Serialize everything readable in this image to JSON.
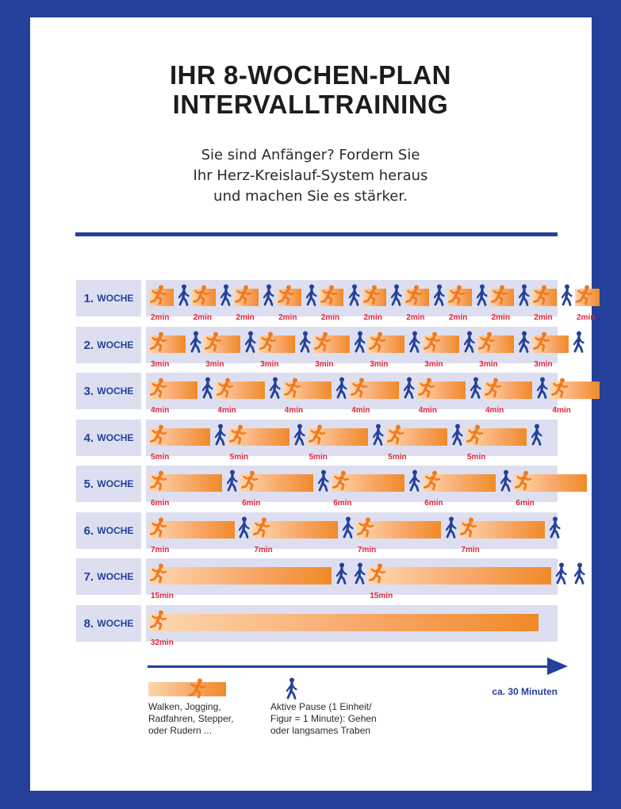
{
  "title": {
    "line1": "IHR 8-WOCHEN-PLAN",
    "line2": "INTERVALLTRAINING"
  },
  "subtitle": {
    "line1": "Sie sind Anfänger? Fordern Sie",
    "line2": "Ihr Herz-Kreislauf-System heraus",
    "line3": "und machen Sie es stärker."
  },
  "weeks": [
    {
      "num": "1.",
      "word": "WOCHE",
      "active_min": 2,
      "active_label": "2min",
      "pause_min": 1,
      "reps": 11
    },
    {
      "num": "2.",
      "word": "WOCHE",
      "active_min": 3,
      "active_label": "3min",
      "pause_min": 1,
      "reps": 8
    },
    {
      "num": "3.",
      "word": "WOCHE",
      "active_min": 4,
      "active_label": "4min",
      "pause_min": 1,
      "reps": 7
    },
    {
      "num": "4.",
      "word": "WOCHE",
      "active_min": 5,
      "active_label": "5min",
      "pause_min": 1,
      "reps": 5
    },
    {
      "num": "5.",
      "word": "WOCHE",
      "active_min": 6,
      "active_label": "6min",
      "pause_min": 1,
      "reps": 5
    },
    {
      "num": "6.",
      "word": "WOCHE",
      "active_min": 7,
      "active_label": "7min",
      "pause_min": 1,
      "reps": 4
    },
    {
      "num": "7.",
      "word": "WOCHE",
      "active_min": 15,
      "active_label": "15min",
      "pause_min": 2,
      "reps": 2
    },
    {
      "num": "8.",
      "word": "WOCHE",
      "active_min": 32,
      "active_label": "32min",
      "pause_min": 0,
      "reps": 1
    }
  ],
  "axis": {
    "label": "ca. 30 Minuten"
  },
  "legend": {
    "active": {
      "line1": "Walken, Jogging,",
      "line2": "Radfahren, Stepper,",
      "line3": "oder Rudern ...",
      "icon": "runner-icon"
    },
    "pause": {
      "line1": "Aktive Pause (1 Einheit/",
      "line2": "Figur = 1 Minute): Gehen",
      "line3": "oder langsames Traben",
      "icon": "walker-icon"
    }
  },
  "colors": {
    "frame": "#24409a",
    "runner": "#f07a1e",
    "minutes": "#e2253c",
    "track": "#dddff0"
  }
}
